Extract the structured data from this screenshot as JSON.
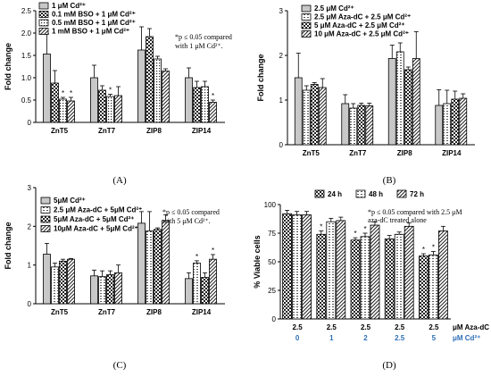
{
  "colors": {
    "blue": "#2e6fb5",
    "axis": "#000000",
    "bar_fill": "#ffffff",
    "solid": "#c8c8c8"
  },
  "chart_data": [
    {
      "id": "A",
      "type": "bar",
      "panel_label": "(A)",
      "ylabel": "Fold change",
      "ylim": [
        0,
        2.5
      ],
      "yticks": [
        0,
        0.5,
        1.0,
        1.5,
        2.0,
        2.5
      ],
      "ytick_labels": [
        "0",
        "0.5",
        "1.0",
        "1.5",
        "2.0",
        "2.5"
      ],
      "categories": [
        "ZnT5",
        "ZnT7",
        "ZIP8",
        "ZIP14"
      ],
      "note_lines": [
        "*p ≤ 0.05 compared",
        "with 1 μM Cd²⁺."
      ],
      "series": [
        {
          "name": "1 μM Cd²⁺",
          "pattern": "solid",
          "values": [
            1.53,
            1.0,
            1.62,
            1.0
          ],
          "errors": [
            0.45,
            0.28,
            0.52,
            0.22
          ],
          "stars": [
            false,
            false,
            false,
            false
          ]
        },
        {
          "name": "0.1 mM BSO + 1 μM Cd²⁺",
          "pattern": "checker",
          "values": [
            0.88,
            0.72,
            1.92,
            0.78
          ],
          "errors": [
            0.28,
            0.1,
            0.18,
            0.14
          ],
          "stars": [
            false,
            false,
            false,
            false
          ]
        },
        {
          "name": "0.5 mM BSO + 1 μM Cd²⁺",
          "pattern": "dots",
          "values": [
            0.52,
            0.58,
            1.42,
            0.8
          ],
          "errors": [
            0.04,
            0.05,
            0.06,
            0.12
          ],
          "stars": [
            true,
            true,
            false,
            false
          ]
        },
        {
          "name": "1 mM BSO + 1 μM Cd²⁺",
          "pattern": "diag",
          "values": [
            0.48,
            0.6,
            1.15,
            0.45
          ],
          "errors": [
            0.08,
            0.2,
            0.05,
            0.05
          ],
          "stars": [
            true,
            false,
            false,
            true
          ]
        }
      ]
    },
    {
      "id": "B",
      "type": "bar",
      "panel_label": "(B)",
      "ylabel": "Fold change",
      "ylim": [
        0,
        3
      ],
      "yticks": [
        0,
        1,
        2,
        3
      ],
      "ytick_labels": [
        "0",
        "1",
        "2",
        "3"
      ],
      "categories": [
        "ZnT5",
        "ZnT7",
        "ZIP8",
        "ZIP14"
      ],
      "note_lines": [],
      "series": [
        {
          "name": "2.5 μM Cd²⁺",
          "pattern": "solid",
          "values": [
            1.5,
            0.92,
            1.93,
            0.88
          ],
          "errors": [
            0.55,
            0.2,
            0.3,
            0.35
          ],
          "stars": [
            false,
            false,
            false,
            false
          ]
        },
        {
          "name": "2.5 μM Aza-dC + 2.5 μM Cd²⁺",
          "pattern": "dash",
          "values": [
            1.22,
            0.82,
            2.08,
            0.92
          ],
          "errors": [
            0.1,
            0.1,
            0.2,
            0.3
          ],
          "stars": [
            false,
            false,
            false,
            false
          ]
        },
        {
          "name": "5 μM Aza-dC + 2.5 μM Cd²⁺",
          "pattern": "checker",
          "values": [
            1.35,
            0.88,
            1.68,
            1.02
          ],
          "errors": [
            0.04,
            0.05,
            0.06,
            0.18
          ],
          "stars": [
            false,
            false,
            false,
            false
          ]
        },
        {
          "name": "10 μM Aza-dC + 2.5 μM Cd²⁺",
          "pattern": "diag",
          "values": [
            1.28,
            0.87,
            1.93,
            1.04
          ],
          "errors": [
            0.2,
            0.06,
            0.6,
            0.1
          ],
          "stars": [
            false,
            false,
            false,
            false
          ]
        }
      ]
    },
    {
      "id": "C",
      "type": "bar",
      "panel_label": "(C)",
      "ylabel": "Fold change",
      "ylim": [
        0,
        3
      ],
      "yticks": [
        0,
        1,
        2,
        3
      ],
      "ytick_labels": [
        "0",
        "1",
        "2",
        "3"
      ],
      "categories": [
        "ZnT5",
        "ZnT7",
        "ZIP8",
        "ZIP14"
      ],
      "note_lines": [
        "*p ≤ 0.05 compared",
        "with 5 μM Cd²⁺."
      ],
      "series": [
        {
          "name": "5μM Cd²⁺",
          "pattern": "solid",
          "values": [
            1.28,
            0.72,
            2.08,
            0.65
          ],
          "errors": [
            0.28,
            0.15,
            0.3,
            0.15
          ],
          "stars": [
            false,
            false,
            false,
            false
          ]
        },
        {
          "name": "2.5 μM Aza-dC + 5μM Cd²⁺",
          "pattern": "dash",
          "values": [
            0.95,
            0.7,
            1.88,
            1.05
          ],
          "errors": [
            0.1,
            0.15,
            0.5,
            0.06
          ],
          "stars": [
            false,
            false,
            false,
            true
          ]
        },
        {
          "name": "5μM Aza-dC + 5μM Cd²⁺",
          "pattern": "checker",
          "values": [
            1.1,
            0.75,
            1.92,
            0.68
          ],
          "errors": [
            0.05,
            0.1,
            0.04,
            0.12
          ],
          "stars": [
            false,
            false,
            false,
            false
          ]
        },
        {
          "name": "10μM Aza-dC + 5μM Cd²⁺",
          "pattern": "diag",
          "values": [
            1.15,
            0.8,
            2.15,
            1.15
          ],
          "errors": [
            0.02,
            0.2,
            0.15,
            0.12
          ],
          "stars": [
            false,
            false,
            false,
            true
          ]
        }
      ]
    },
    {
      "id": "D",
      "type": "bar",
      "panel_label": "(D)",
      "ylabel": "% Viable cells",
      "ylim": [
        0,
        100
      ],
      "yticks": [
        0,
        25,
        50,
        75,
        100
      ],
      "ytick_labels": [
        "0",
        "25",
        "50",
        "75",
        "100"
      ],
      "categories": [
        "2.5",
        "2.5",
        "2.5",
        "2.5",
        "2.5"
      ],
      "categories_row2": [
        "0",
        "1",
        "2",
        "2.5",
        "5"
      ],
      "row1_title": "μM Aza-dC",
      "row2_title": "μM Cd²⁺",
      "note_lines": [
        "*p ≤ 0.05 compared with 2.5 μM",
        "aza-dC treated alone"
      ],
      "series": [
        {
          "name": "24 h",
          "pattern": "checker",
          "values": [
            92,
            74,
            69,
            70,
            55
          ],
          "errors": [
            3,
            3,
            2,
            3,
            2
          ],
          "stars": [
            false,
            true,
            true,
            false,
            true
          ]
        },
        {
          "name": "48 h",
          "pattern": "dash",
          "values": [
            91,
            85,
            72,
            74,
            56
          ],
          "errors": [
            3,
            3,
            3,
            2,
            3
          ],
          "stars": [
            false,
            false,
            true,
            false,
            true
          ]
        },
        {
          "name": "72 h",
          "pattern": "diag",
          "values": [
            91,
            86,
            82,
            81,
            77
          ],
          "errors": [
            3,
            3,
            3,
            3,
            4
          ],
          "stars": [
            false,
            false,
            false,
            false,
            false
          ]
        }
      ]
    }
  ]
}
